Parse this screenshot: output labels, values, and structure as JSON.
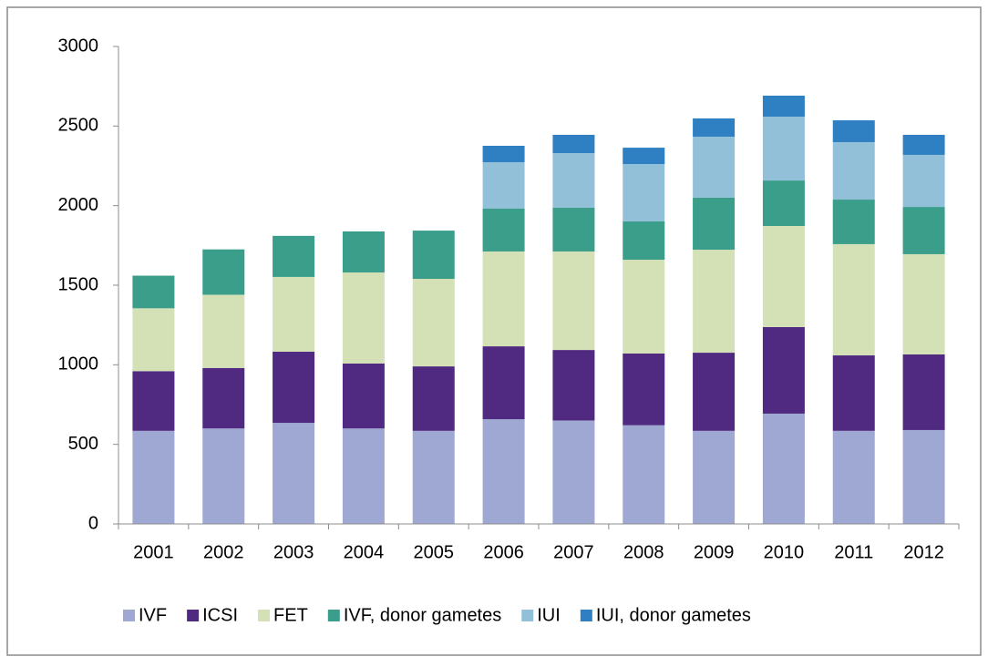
{
  "chart_data": {
    "type": "stacked_bar",
    "categories": [
      "2001",
      "2002",
      "2003",
      "2004",
      "2005",
      "2006",
      "2007",
      "2008",
      "2009",
      "2010",
      "2011",
      "2012"
    ],
    "series": [
      {
        "name": "IVF",
        "color": "#9ea8d2",
        "values": [
          585,
          600,
          635,
          600,
          585,
          658,
          650,
          620,
          585,
          693,
          585,
          590
        ]
      },
      {
        "name": "ICSI",
        "color": "#4f2a80",
        "values": [
          375,
          380,
          447,
          408,
          405,
          458,
          443,
          451,
          491,
          544,
          474,
          475
        ]
      },
      {
        "name": "FET",
        "color": "#d4e1b6",
        "values": [
          395,
          460,
          470,
          572,
          550,
          596,
          619,
          589,
          647,
          635,
          699,
          630
        ]
      },
      {
        "name": "IVF, donor gametes",
        "color": "#3a9e8a",
        "values": [
          205,
          285,
          258,
          258,
          303,
          269,
          275,
          241,
          327,
          286,
          280,
          297
        ]
      },
      {
        "name": "IUI",
        "color": "#92c0d9",
        "values": [
          0,
          0,
          0,
          0,
          0,
          292,
          343,
          360,
          383,
          401,
          361,
          327
        ]
      },
      {
        "name": "IUI, donor gametes",
        "color": "#2f7fc3",
        "values": [
          0,
          0,
          0,
          0,
          0,
          103,
          115,
          103,
          115,
          132,
          137,
          126
        ]
      }
    ],
    "ylim": [
      0,
      3000
    ],
    "yticks": [
      0,
      500,
      1000,
      1500,
      2000,
      2500,
      3000
    ],
    "grid": false,
    "legend": "bottom"
  }
}
